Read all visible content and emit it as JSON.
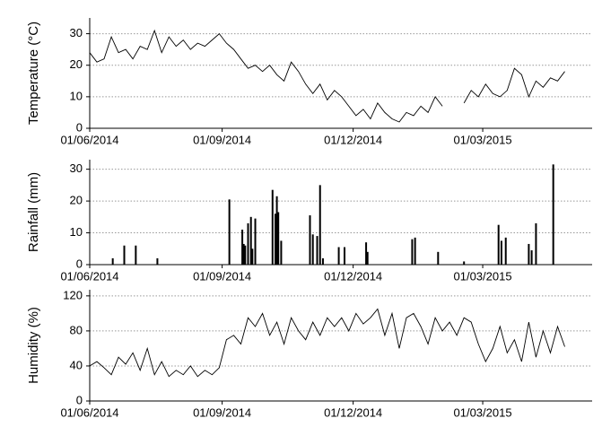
{
  "chart_data": [
    {
      "type": "line",
      "ylabel": "Temperature (°C)",
      "color": "#000000",
      "grid": true,
      "x": [
        "2014-06-01",
        "2014-06-06",
        "2014-06-11",
        "2014-06-16",
        "2014-06-21",
        "2014-06-26",
        "2014-07-01",
        "2014-07-06",
        "2014-07-11",
        "2014-07-16",
        "2014-07-21",
        "2014-07-26",
        "2014-07-31",
        "2014-08-05",
        "2014-08-10",
        "2014-08-15",
        "2014-08-20",
        "2014-08-25",
        "2014-08-30",
        "2014-09-04",
        "2014-09-09",
        "2014-09-14",
        "2014-09-19",
        "2014-09-24",
        "2014-09-29",
        "2014-10-04",
        "2014-10-09",
        "2014-10-14",
        "2014-10-19",
        "2014-10-24",
        "2014-10-29",
        "2014-11-03",
        "2014-11-08",
        "2014-11-13",
        "2014-11-18",
        "2014-11-23",
        "2014-11-28",
        "2014-12-03",
        "2014-12-08",
        "2014-12-13",
        "2014-12-18",
        "2014-12-23",
        "2014-12-28",
        "2015-01-02",
        "2015-01-07",
        "2015-01-12",
        "2015-01-17",
        "2015-01-22",
        "2015-01-27",
        "2015-02-01",
        "2015-02-06",
        "2015-02-11",
        "2015-02-16",
        "2015-02-21",
        "2015-02-26",
        "2015-03-03",
        "2015-03-08",
        "2015-03-13",
        "2015-03-18",
        "2015-03-23",
        "2015-03-28",
        "2015-04-02",
        "2015-04-07",
        "2015-04-12",
        "2015-04-17",
        "2015-04-22",
        "2015-04-27"
      ],
      "values": [
        24,
        21,
        22,
        29,
        24,
        25,
        22,
        26,
        25,
        31,
        24,
        29,
        26,
        28,
        25,
        27,
        26,
        28,
        30,
        27,
        25,
        22,
        19,
        20,
        18,
        20,
        17,
        15,
        21,
        18,
        14,
        11,
        14,
        9,
        12,
        10,
        7,
        4,
        6,
        3,
        8,
        5,
        3,
        2,
        5,
        4,
        7,
        5,
        10,
        7,
        null,
        null,
        8,
        12,
        10,
        14,
        11,
        10,
        12,
        19,
        17,
        10,
        15,
        13,
        16,
        15,
        18
      ],
      "xlim": [
        "2014-06-01",
        "2015-05-16"
      ],
      "xticks": [
        {
          "value": "2014-06-01",
          "label": "01/06/2014"
        },
        {
          "value": "2014-09-01",
          "label": "01/09/2014"
        },
        {
          "value": "2014-12-01",
          "label": "01/12/2014"
        },
        {
          "value": "2015-03-01",
          "label": "01/03/2015"
        }
      ],
      "ylim": [
        0,
        35
      ],
      "yticks": [
        0,
        10,
        20,
        30
      ]
    },
    {
      "type": "bar",
      "ylabel": "Rainfall (mm)",
      "color": "#000000",
      "grid": true,
      "x": [
        "2014-06-17",
        "2014-06-25",
        "2014-07-03",
        "2014-07-18",
        "2014-09-06",
        "2014-09-15",
        "2014-09-16",
        "2014-09-17",
        "2014-09-19",
        "2014-09-21",
        "2014-09-22",
        "2014-09-24",
        "2014-10-06",
        "2014-10-08",
        "2014-10-09",
        "2014-10-10",
        "2014-10-12",
        "2014-11-01",
        "2014-11-03",
        "2014-11-06",
        "2014-11-08",
        "2014-11-10",
        "2014-11-21",
        "2014-11-25",
        "2014-12-10",
        "2014-12-11",
        "2015-01-11",
        "2015-01-13",
        "2015-01-29",
        "2015-02-16",
        "2015-03-12",
        "2015-03-14",
        "2015-03-17",
        "2015-04-02",
        "2015-04-04",
        "2015-04-07",
        "2015-04-19"
      ],
      "values": [
        2,
        6,
        6,
        2,
        20.5,
        11,
        6.5,
        6,
        13,
        15,
        5,
        14.5,
        23.5,
        16,
        21.5,
        16.5,
        7.5,
        15.5,
        9.5,
        9,
        25,
        2,
        5.5,
        5.5,
        7,
        4,
        8,
        8.5,
        4,
        1,
        12.5,
        7.5,
        8.5,
        6.5,
        4.5,
        13,
        31.5
      ],
      "xlim": [
        "2014-06-01",
        "2015-05-16"
      ],
      "xticks": [
        {
          "value": "2014-06-01",
          "label": "01/06/2014"
        },
        {
          "value": "2014-09-01",
          "label": "01/09/2014"
        },
        {
          "value": "2014-12-01",
          "label": "01/12/2014"
        },
        {
          "value": "2015-03-01",
          "label": "01/03/2015"
        }
      ],
      "ylim": [
        0,
        33
      ],
      "yticks": [
        0,
        10,
        20,
        30
      ]
    },
    {
      "type": "line",
      "ylabel": "Humidity (%)",
      "color": "#000000",
      "grid": true,
      "x": [
        "2014-06-01",
        "2014-06-06",
        "2014-06-11",
        "2014-06-16",
        "2014-06-21",
        "2014-06-26",
        "2014-07-01",
        "2014-07-06",
        "2014-07-11",
        "2014-07-16",
        "2014-07-21",
        "2014-07-26",
        "2014-07-31",
        "2014-08-05",
        "2014-08-10",
        "2014-08-15",
        "2014-08-20",
        "2014-08-25",
        "2014-08-30",
        "2014-09-04",
        "2014-09-09",
        "2014-09-14",
        "2014-09-19",
        "2014-09-24",
        "2014-09-29",
        "2014-10-04",
        "2014-10-09",
        "2014-10-14",
        "2014-10-19",
        "2014-10-24",
        "2014-10-29",
        "2014-11-03",
        "2014-11-08",
        "2014-11-13",
        "2014-11-18",
        "2014-11-23",
        "2014-11-28",
        "2014-12-03",
        "2014-12-08",
        "2014-12-13",
        "2014-12-18",
        "2014-12-23",
        "2014-12-28",
        "2015-01-02",
        "2015-01-07",
        "2015-01-12",
        "2015-01-17",
        "2015-01-22",
        "2015-01-27",
        "2015-02-01",
        "2015-02-06",
        "2015-02-11",
        "2015-02-16",
        "2015-02-21",
        "2015-02-26",
        "2015-03-03",
        "2015-03-08",
        "2015-03-13",
        "2015-03-18",
        "2015-03-23",
        "2015-03-28",
        "2015-04-02",
        "2015-04-07",
        "2015-04-12",
        "2015-04-17",
        "2015-04-22",
        "2015-04-27"
      ],
      "values": [
        40,
        45,
        38,
        30,
        50,
        42,
        55,
        35,
        60,
        30,
        45,
        28,
        35,
        30,
        40,
        28,
        35,
        30,
        38,
        70,
        75,
        65,
        95,
        85,
        100,
        75,
        90,
        65,
        95,
        80,
        70,
        90,
        75,
        95,
        85,
        95,
        80,
        100,
        88,
        95,
        105,
        75,
        100,
        60,
        95,
        100,
        85,
        65,
        95,
        80,
        90,
        75,
        95,
        90,
        65,
        45,
        60,
        85,
        55,
        70,
        45,
        90,
        50,
        80,
        55,
        85,
        62
      ],
      "xlim": [
        "2014-06-01",
        "2015-05-16"
      ],
      "xticks": [
        {
          "value": "2014-06-01",
          "label": "01/06/2014"
        },
        {
          "value": "2014-09-01",
          "label": "01/09/2014"
        },
        {
          "value": "2014-12-01",
          "label": "01/12/2014"
        },
        {
          "value": "2015-03-01",
          "label": "01/03/2015"
        }
      ],
      "ylim": [
        0,
        127
      ],
      "yticks": [
        0,
        40,
        80,
        120
      ]
    }
  ]
}
